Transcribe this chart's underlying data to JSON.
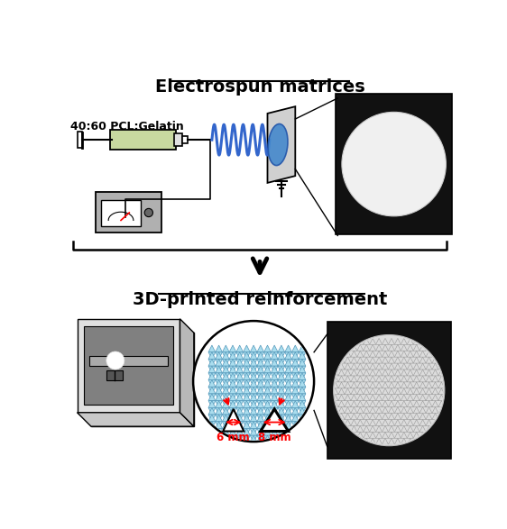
{
  "title_top": "Electrospun matrices",
  "title_bottom": "3D-printed reinforcement",
  "label_pcl": "40:60 PCL:Gelatin",
  "label_6mm": "6 mm",
  "label_8mm": "8 mm",
  "bg_color": "#ffffff",
  "syringe_color": "#c8d9a0",
  "coil_color": "#3366cc",
  "collector_color": "#d0d0d0",
  "ellipse_color": "#4488cc",
  "mesh_color": "#aaddee",
  "arrow_color": "#cc0000",
  "photo_bg": "#111111"
}
